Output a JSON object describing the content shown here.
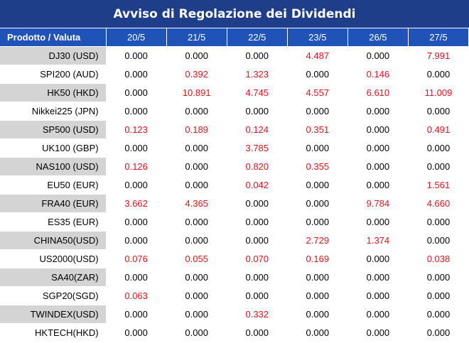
{
  "title": "Avviso di Regolazione dei Dividendi",
  "header": {
    "product_label": "Prodotto / Valuta",
    "dates": [
      "20/5",
      "21/5",
      "22/5",
      "23/5",
      "26/5",
      "27/5"
    ]
  },
  "colors": {
    "title_bg": "#1f3e8a",
    "header_bg": "#1f53b8",
    "shaded_row": "#d4d4d4",
    "positive_value": "#e8101b"
  },
  "rows": [
    {
      "product": "DJ30 (USD)",
      "values": [
        "0.000",
        "0.000",
        "0.000",
        "4.487",
        "0.000",
        "7.991"
      ]
    },
    {
      "product": "SPI200 (AUD)",
      "values": [
        "0.000",
        "0.392",
        "1.323",
        "0.000",
        "0.146",
        "0.000"
      ]
    },
    {
      "product": "HK50 (HKD)",
      "values": [
        "0.000",
        "10.891",
        "4.745",
        "4.557",
        "6.610",
        "11.009"
      ]
    },
    {
      "product": "Nikkei225 (JPN)",
      "values": [
        "0.000",
        "0.000",
        "0.000",
        "0.000",
        "0.000",
        "0.000"
      ]
    },
    {
      "product": "SP500 (USD)",
      "values": [
        "0.123",
        "0.189",
        "0.124",
        "0.351",
        "0.000",
        "0.491"
      ]
    },
    {
      "product": "UK100 (GBP)",
      "values": [
        "0.000",
        "0.000",
        "3.785",
        "0.000",
        "0.000",
        "0.000"
      ]
    },
    {
      "product": "NAS100 (USD)",
      "values": [
        "0.126",
        "0.000",
        "0.820",
        "0.355",
        "0.000",
        "0.000"
      ]
    },
    {
      "product": "EU50 (EUR)",
      "values": [
        "0.000",
        "0.000",
        "0.042",
        "0.000",
        "0.000",
        "1.561"
      ]
    },
    {
      "product": "FRA40 (EUR)",
      "values": [
        "3.662",
        "4.365",
        "0.000",
        "0.000",
        "9.784",
        "4.660"
      ]
    },
    {
      "product": "ES35 (EUR)",
      "values": [
        "0.000",
        "0.000",
        "0.000",
        "0.000",
        "0.000",
        "0.000"
      ]
    },
    {
      "product": "CHINA50(USD)",
      "values": [
        "0.000",
        "0.000",
        "0.000",
        "2.729",
        "1.374",
        "0.000"
      ]
    },
    {
      "product": "US2000(USD)",
      "values": [
        "0.076",
        "0.055",
        "0.070",
        "0.169",
        "0.000",
        "0.038"
      ]
    },
    {
      "product": "SA40(ZAR)",
      "values": [
        "0.000",
        "0.000",
        "0.000",
        "0.000",
        "0.000",
        "0.000"
      ]
    },
    {
      "product": "SGP20(SGD)",
      "values": [
        "0.063",
        "0.000",
        "0.000",
        "0.000",
        "0.000",
        "0.000"
      ]
    },
    {
      "product": "TWINDEX(USD)",
      "values": [
        "0.000",
        "0.000",
        "0.332",
        "0.000",
        "0.000",
        "0.000"
      ]
    },
    {
      "product": "HKTECH(HKD)",
      "values": [
        "0.000",
        "0.000",
        "0.000",
        "0.000",
        "0.000",
        "0.000"
      ]
    }
  ]
}
